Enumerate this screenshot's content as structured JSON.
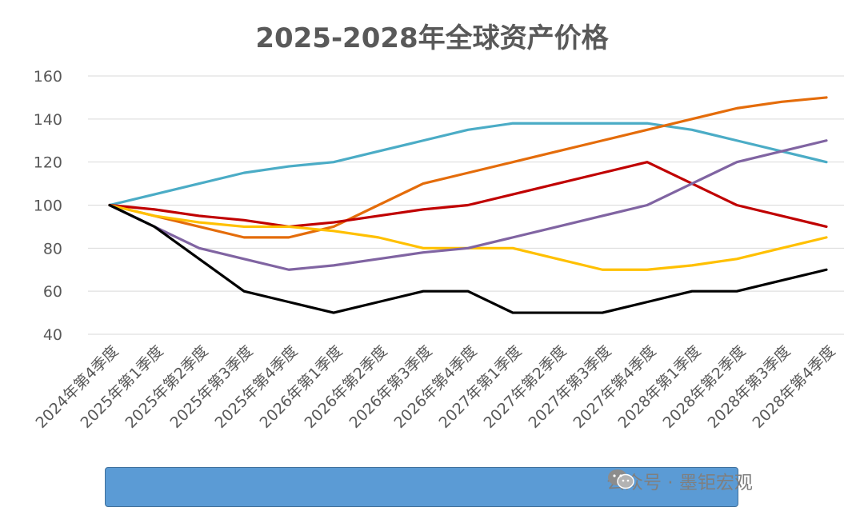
{
  "title": "2025-2028年全球资产价格",
  "watermark": {
    "text": "公众号 · 墨钜宏观",
    "icon": "wechat-icon"
  },
  "chart_data": {
    "type": "line",
    "title": "2025-2028年全球资产价格",
    "ylim": [
      40,
      160
    ],
    "yticks": [
      40,
      60,
      80,
      100,
      120,
      140,
      160
    ],
    "grid": "horizontal",
    "legend": "bottom (empty blue bar)",
    "categories": [
      "2024年第4季度",
      "2025年第1季度",
      "2025年第2季度",
      "2025年第3季度",
      "2025年第4季度",
      "2026年第1季度",
      "2026年第2季度",
      "2026年第3季度",
      "2026年第4季度",
      "2027年第1季度",
      "2027年第2季度",
      "2027年第3季度",
      "2027年第4季度",
      "2028年第1季度",
      "2028年第2季度",
      "2028年第3季度",
      "2028年第4季度"
    ],
    "series": [
      {
        "color": "#4bacc6",
        "values": [
          100,
          105,
          110,
          115,
          118,
          120,
          125,
          130,
          135,
          138,
          138,
          138,
          138,
          135,
          130,
          125,
          120
        ]
      },
      {
        "color": "#e46c0a",
        "values": [
          100,
          95,
          90,
          85,
          85,
          90,
          100,
          110,
          115,
          120,
          125,
          130,
          135,
          140,
          145,
          148,
          150
        ]
      },
      {
        "color": "#c00000",
        "values": [
          100,
          98,
          95,
          93,
          90,
          92,
          95,
          98,
          100,
          105,
          110,
          115,
          120,
          110,
          100,
          95,
          90
        ]
      },
      {
        "color": "#ffc000",
        "values": [
          100,
          95,
          92,
          90,
          90,
          88,
          85,
          80,
          80,
          80,
          75,
          70,
          70,
          72,
          75,
          80,
          85
        ]
      },
      {
        "color": "#8064a2",
        "values": [
          100,
          90,
          80,
          75,
          70,
          72,
          75,
          78,
          80,
          85,
          90,
          95,
          100,
          110,
          120,
          125,
          130
        ]
      },
      {
        "color": "#000000",
        "values": [
          100,
          90,
          75,
          60,
          55,
          50,
          55,
          60,
          60,
          50,
          50,
          50,
          55,
          60,
          60,
          65,
          70
        ]
      }
    ]
  }
}
